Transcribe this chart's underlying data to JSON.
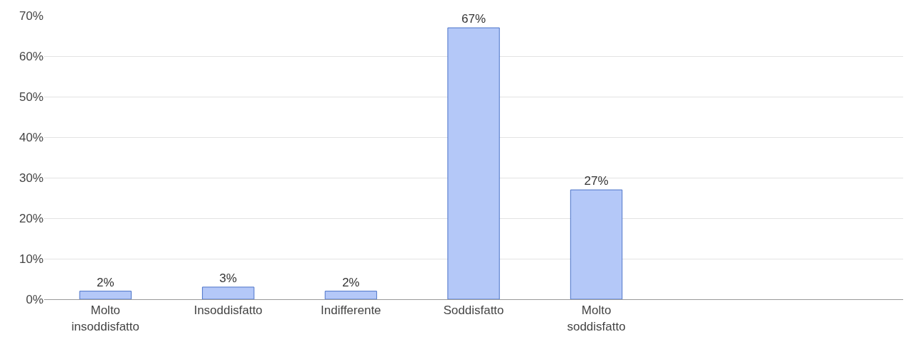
{
  "chart_data": {
    "type": "bar",
    "categories": [
      "Molto insoddisfatto",
      "Insoddisfatto",
      "Indifferente",
      "Soddisfatto",
      "Molto soddisfatto",
      null,
      null
    ],
    "values": [
      2,
      3,
      2,
      67,
      27,
      null,
      null
    ],
    "color": "#b4c8f8",
    "value_labels": [
      "2%",
      "3%",
      "2%",
      "67%",
      "27%",
      null,
      null
    ],
    "ylim": [
      0,
      70
    ],
    "yticks": [
      {
        "value": 0,
        "label": "0%"
      },
      {
        "value": 10,
        "label": "10%"
      },
      {
        "value": 20,
        "label": "20%"
      },
      {
        "value": 30,
        "label": "30%"
      },
      {
        "value": 40,
        "label": "40%"
      },
      {
        "value": 50,
        "label": "50%"
      },
      {
        "value": 60,
        "label": "60%"
      },
      {
        "value": 70,
        "label": "70%"
      }
    ],
    "grid": "y"
  }
}
